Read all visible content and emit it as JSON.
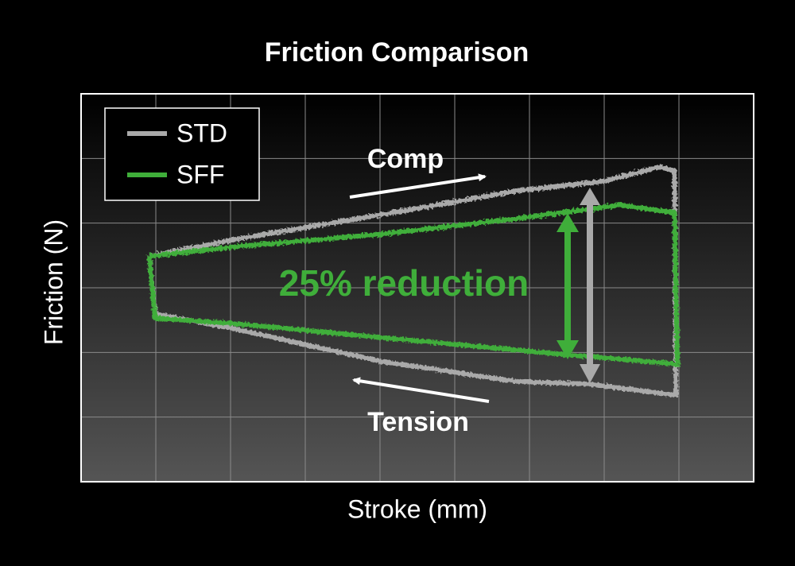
{
  "chart_data": {
    "type": "line",
    "title": "Friction Comparison",
    "x_label": "Stroke (mm)",
    "y_label": "Friction (N)",
    "xlim": [
      0,
      9
    ],
    "ylim": [
      0,
      6
    ],
    "xticks": [
      1,
      2,
      3,
      4,
      5,
      6,
      7,
      8
    ],
    "yticks": [
      1,
      2,
      3,
      4,
      5
    ],
    "grid": true,
    "legend": "upper left",
    "series": [
      {
        "name": "STD",
        "color": "#a9a9a9",
        "x": [
          0.91,
          2.11,
          4.02,
          5.83,
          7.0,
          7.74,
          7.94,
          7.96,
          6.79,
          5.83,
          4.02,
          2.11,
          0.99,
          0.91
        ],
        "values": [
          3.49,
          3.76,
          4.13,
          4.5,
          4.65,
          4.87,
          4.81,
          1.34,
          1.51,
          1.55,
          1.86,
          2.35,
          2.6,
          3.49
        ]
      },
      {
        "name": "SFF",
        "color": "#3fae3a",
        "x": [
          0.91,
          2.11,
          4.02,
          5.83,
          7.21,
          7.94,
          7.98,
          6.36,
          4.02,
          2.11,
          0.99,
          0.91
        ],
        "values": [
          3.49,
          3.64,
          3.83,
          4.07,
          4.28,
          4.16,
          1.82,
          1.98,
          2.23,
          2.44,
          2.53,
          3.49
        ]
      }
    ],
    "annotations": [
      "Comp",
      "Tension",
      "25% reduction"
    ]
  }
}
